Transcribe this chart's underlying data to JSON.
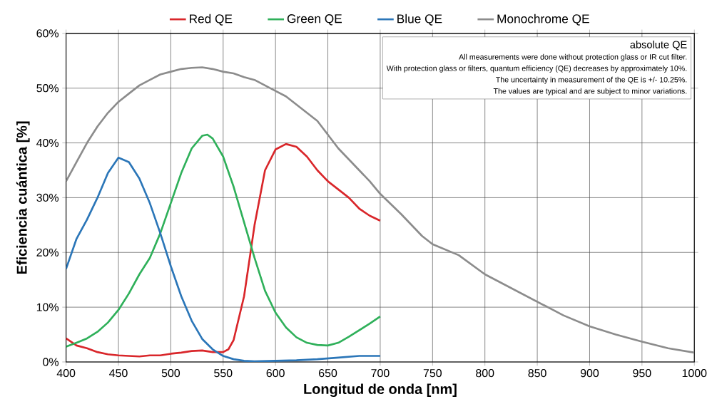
{
  "chart_data": {
    "type": "line",
    "xlabel": "Longitud de onda  [nm]",
    "ylabel": "Eficiencia cuántica [%]",
    "xlim": [
      400,
      1000
    ],
    "ylim": [
      0,
      60
    ],
    "xticks": [
      400,
      450,
      500,
      550,
      600,
      650,
      700,
      750,
      800,
      850,
      900,
      950,
      1000
    ],
    "yticks": [
      {
        "value": 0,
        "label": "0%"
      },
      {
        "value": 10,
        "label": "10%"
      },
      {
        "value": 20,
        "label": "20%"
      },
      {
        "value": 30,
        "label": "30%"
      },
      {
        "value": 40,
        "label": "40%"
      },
      {
        "value": 50,
        "label": "50%"
      },
      {
        "value": 60,
        "label": "60%"
      }
    ],
    "grid": true,
    "legend": "top",
    "marker": "none",
    "line_style": "solid",
    "annotations": [
      "absolute QE",
      "All measurements were done without protection glass or IR cut filter.",
      "With protection glass or filters, quantum efficiency (QE) decreases by approximately 10%.",
      "The uncertainty in measurement of the QE is +/- 10.25%.",
      "The values are typical and are subject to minor variations."
    ],
    "series": [
      {
        "name": "Red QE",
        "color": "#d9262a",
        "x": [
          400,
          410,
          420,
          430,
          440,
          450,
          460,
          470,
          480,
          490,
          500,
          510,
          520,
          530,
          540,
          550,
          555,
          560,
          570,
          580,
          590,
          600,
          610,
          620,
          630,
          640,
          650,
          660,
          670,
          680,
          690,
          700
        ],
        "values": [
          4.3,
          3,
          2.5,
          1.8,
          1.4,
          1.2,
          1.1,
          1,
          1.2,
          1.2,
          1.5,
          1.7,
          2,
          2.1,
          1.8,
          1.8,
          2.3,
          4,
          12,
          25,
          35,
          38.8,
          39.8,
          39.3,
          37.5,
          35,
          33,
          31.5,
          30,
          28,
          26.7,
          25.8
        ]
      },
      {
        "name": "Green QE",
        "color": "#2fb05a",
        "x": [
          400,
          410,
          420,
          430,
          440,
          450,
          460,
          470,
          480,
          490,
          500,
          510,
          520,
          530,
          535,
          540,
          550,
          560,
          570,
          580,
          590,
          600,
          610,
          620,
          630,
          640,
          650,
          660,
          670,
          680,
          690,
          700
        ],
        "values": [
          2.8,
          3.5,
          4.3,
          5.5,
          7.2,
          9.5,
          12.5,
          16,
          19,
          23.5,
          29,
          34.5,
          39,
          41.3,
          41.5,
          40.8,
          37.5,
          32,
          25.5,
          19,
          13,
          9,
          6.3,
          4.5,
          3.5,
          3.1,
          3,
          3.5,
          4.6,
          5.8,
          7,
          8.3
        ]
      },
      {
        "name": "Blue QE",
        "color": "#2b76b8",
        "x": [
          400,
          410,
          420,
          430,
          440,
          450,
          460,
          470,
          480,
          490,
          500,
          510,
          520,
          530,
          540,
          550,
          560,
          570,
          580,
          600,
          620,
          640,
          660,
          680,
          700
        ],
        "values": [
          17,
          22.5,
          26,
          30,
          34.5,
          37.3,
          36.5,
          33.5,
          29,
          23.5,
          17.5,
          12,
          7.5,
          4.2,
          2.3,
          1.1,
          0.5,
          0.2,
          0.1,
          0.2,
          0.3,
          0.5,
          0.8,
          1.1,
          1.1
        ]
      },
      {
        "name": "Monochrome QE",
        "color": "#8c8c8c",
        "x": [
          400,
          410,
          420,
          430,
          440,
          450,
          460,
          470,
          480,
          490,
          500,
          510,
          520,
          530,
          540,
          550,
          560,
          570,
          580,
          590,
          600,
          610,
          620,
          630,
          640,
          650,
          660,
          670,
          680,
          690,
          700,
          720,
          740,
          750,
          775,
          800,
          825,
          850,
          875,
          900,
          925,
          950,
          975,
          1000
        ],
        "values": [
          33,
          36.5,
          40,
          43,
          45.5,
          47.5,
          49,
          50.5,
          51.5,
          52.5,
          53,
          53.5,
          53.7,
          53.8,
          53.5,
          53,
          52.7,
          52,
          51.5,
          50.5,
          49.5,
          48.5,
          47,
          45.5,
          44,
          41.5,
          39,
          37,
          35,
          33,
          30.7,
          27,
          23,
          21.5,
          19.5,
          16,
          13.5,
          11,
          8.5,
          6.5,
          5,
          3.7,
          2.5,
          1.7
        ]
      }
    ]
  }
}
